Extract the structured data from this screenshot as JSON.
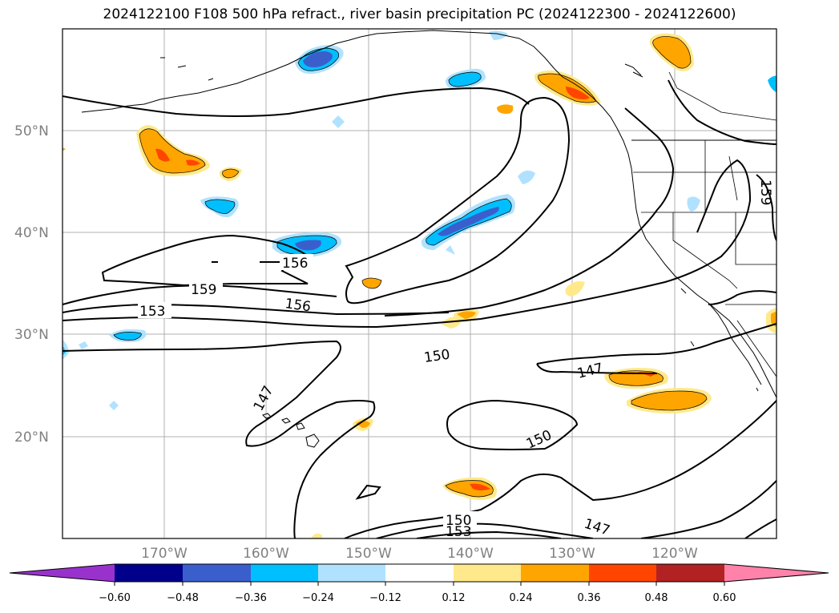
{
  "title": "2024122100 F108 500 hPa refract., river basin precipitation PC (2024122300 - 2024122600)",
  "map": {
    "lat_labels": [
      "50°N",
      "40°N",
      "30°N",
      "20°N"
    ],
    "lon_labels": [
      "170°W",
      "160°W",
      "150°W",
      "140°W",
      "130°W",
      "120°W"
    ],
    "contour_labels": [
      "156",
      "159",
      "153",
      "156",
      "150",
      "147",
      "147",
      "150",
      "150",
      "153",
      "147",
      "159"
    ]
  },
  "colorbar": {
    "colors": [
      "#9932cc",
      "#00008b",
      "#3a5fcd",
      "#00bfff",
      "#b0e2ff",
      "#ffffff",
      "#ffe98a",
      "#ffa500",
      "#ff4500",
      "#b22222",
      "#ff82ab"
    ],
    "ticks": [
      "−0.60",
      "−0.48",
      "−0.36",
      "−0.24",
      "−0.12",
      "0.12",
      "0.24",
      "0.36",
      "0.48",
      "0.60"
    ]
  }
}
